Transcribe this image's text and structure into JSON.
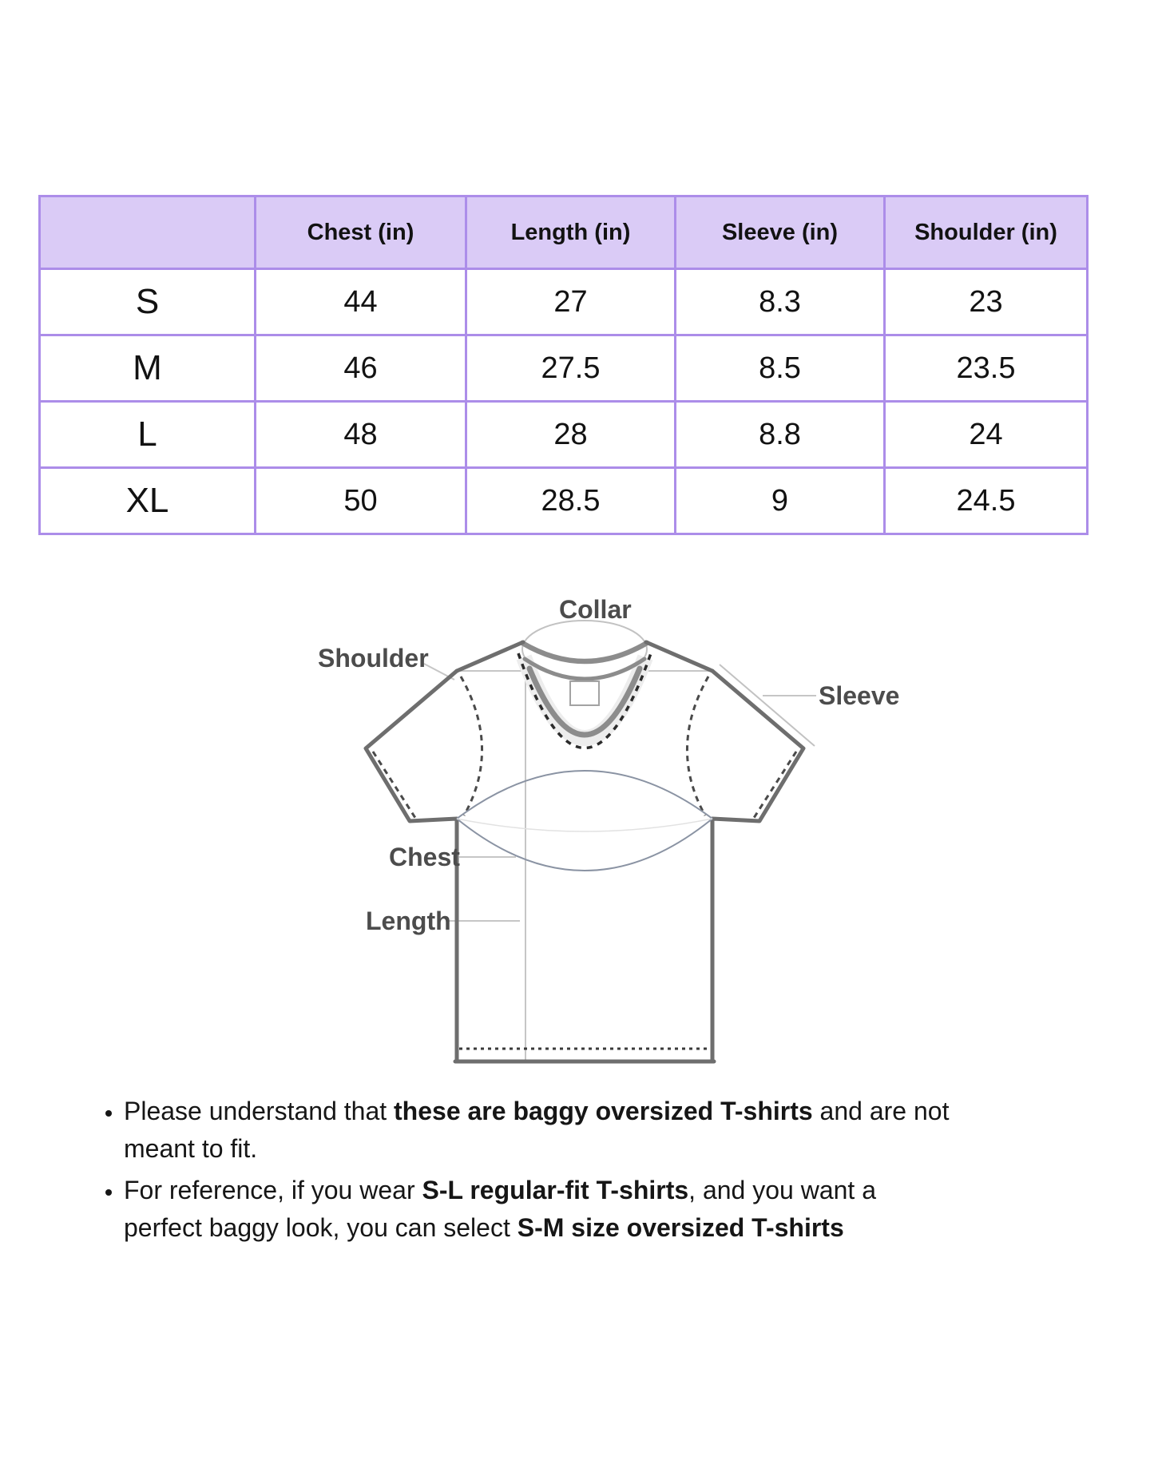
{
  "size_chart": {
    "columns": [
      "Chest (in)",
      "Length (in)",
      "Sleeve (in)",
      "Shoulder (in)"
    ],
    "rows": [
      {
        "size": "S",
        "chest": "44",
        "length": "27",
        "sleeve": "8.3",
        "shoulder": "23"
      },
      {
        "size": "M",
        "chest": "46",
        "length": "27.5",
        "sleeve": "8.5",
        "shoulder": "23.5"
      },
      {
        "size": "L",
        "chest": "48",
        "length": "28",
        "sleeve": "8.8",
        "shoulder": "24"
      },
      {
        "size": "XL",
        "chest": "50",
        "length": "28.5",
        "sleeve": "9",
        "shoulder": "24.5"
      }
    ]
  },
  "diagram": {
    "labels": {
      "collar": "Collar",
      "shoulder": "Shoulder",
      "sleeve": "Sleeve",
      "chest": "Chest",
      "length": "Length"
    }
  },
  "notes": [
    {
      "lines": [
        [
          {
            "t": "Please understand that ",
            "b": 0
          },
          {
            "t": "these are baggy oversized T-shirts",
            "b": 1
          },
          {
            "t": " and are not",
            "b": 0
          }
        ],
        [
          {
            "t": "meant to fit.",
            "b": 0
          }
        ]
      ]
    },
    {
      "lines": [
        [
          {
            "t": "For reference, if you wear ",
            "b": 0
          },
          {
            "t": "S-L regular-fit T-shirts",
            "b": 1
          },
          {
            "t": ", and you want a",
            "b": 0
          }
        ],
        [
          {
            "t": "perfect baggy look, you can select ",
            "b": 0
          },
          {
            "t": "S-M size oversized T-shirts",
            "b": 1
          }
        ]
      ]
    }
  ],
  "colors": {
    "table_header_fill": "#DACBF6",
    "table_border": "#AC8DE9",
    "body_text": "#161616",
    "diagram_line": "#6E6E6E",
    "diagram_label": "#4C4C4C"
  }
}
